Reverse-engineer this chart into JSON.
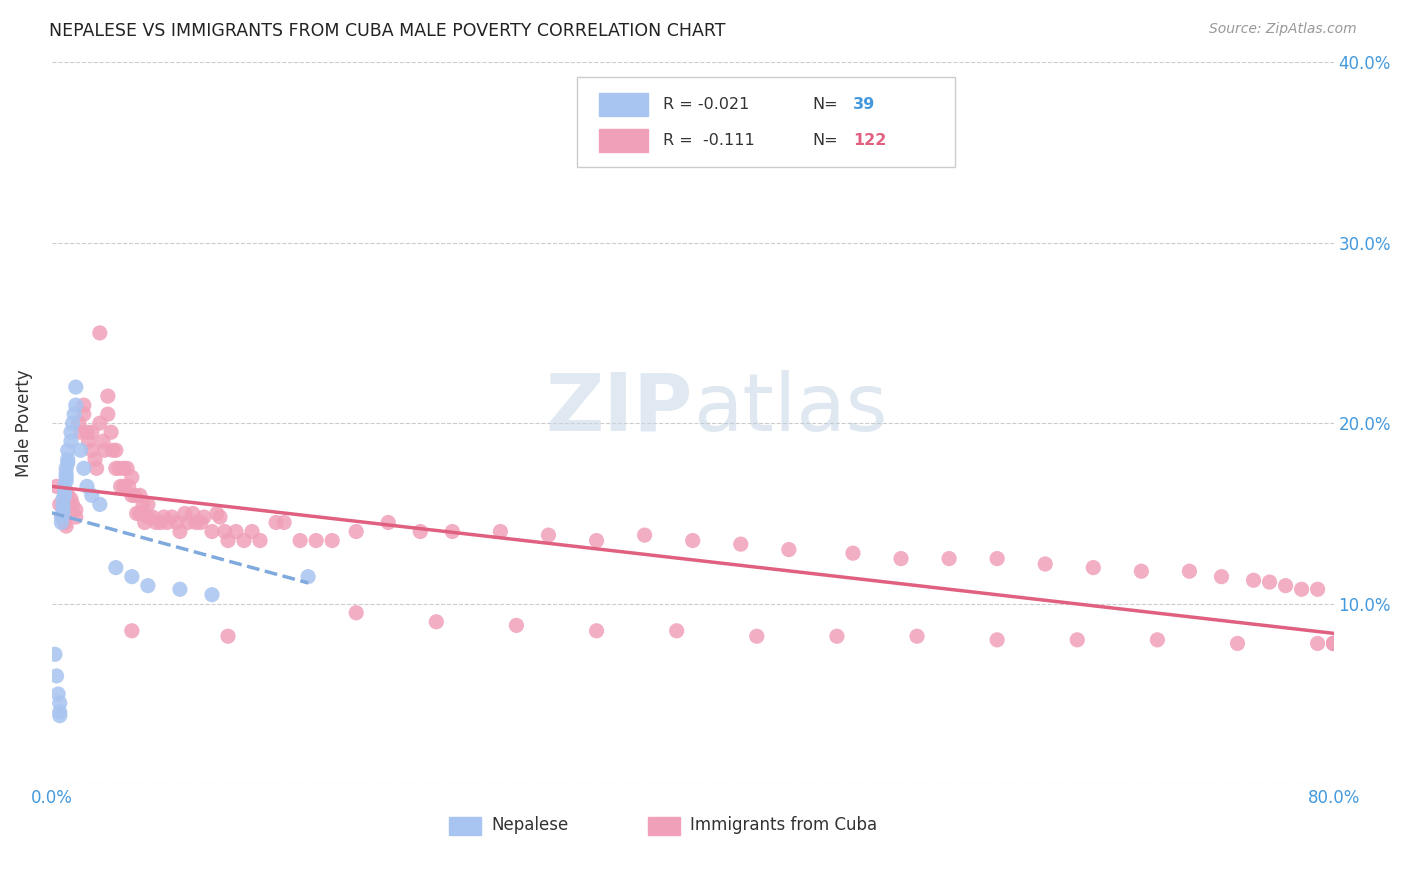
{
  "title": "NEPALESE VS IMMIGRANTS FROM CUBA MALE POVERTY CORRELATION CHART",
  "source": "Source: ZipAtlas.com",
  "ylabel": "Male Poverty",
  "x_min": 0.0,
  "x_max": 0.8,
  "y_min": 0.0,
  "y_max": 0.4,
  "color_nepalese": "#a8c4f0",
  "color_cuba": "#f0a0b8",
  "color_nepalese_line": "#80aadd",
  "color_cuba_line": "#e06080",
  "watermark_color": "#ddeeff",
  "nepalese_x": [
    0.002,
    0.003,
    0.004,
    0.005,
    0.005,
    0.005,
    0.006,
    0.006,
    0.007,
    0.007,
    0.007,
    0.007,
    0.008,
    0.008,
    0.008,
    0.009,
    0.009,
    0.009,
    0.009,
    0.01,
    0.01,
    0.01,
    0.012,
    0.012,
    0.013,
    0.014,
    0.015,
    0.015,
    0.018,
    0.02,
    0.022,
    0.025,
    0.03,
    0.04,
    0.05,
    0.06,
    0.08,
    0.1,
    0.16
  ],
  "nepalese_y": [
    0.072,
    0.06,
    0.05,
    0.045,
    0.04,
    0.038,
    0.145,
    0.148,
    0.15,
    0.152,
    0.155,
    0.158,
    0.16,
    0.162,
    0.165,
    0.168,
    0.17,
    0.172,
    0.175,
    0.178,
    0.18,
    0.185,
    0.19,
    0.195,
    0.2,
    0.205,
    0.21,
    0.22,
    0.185,
    0.175,
    0.165,
    0.16,
    0.155,
    0.12,
    0.115,
    0.11,
    0.108,
    0.105,
    0.115
  ],
  "cuba_x": [
    0.003,
    0.005,
    0.007,
    0.008,
    0.009,
    0.01,
    0.01,
    0.012,
    0.013,
    0.015,
    0.015,
    0.017,
    0.018,
    0.02,
    0.02,
    0.022,
    0.023,
    0.025,
    0.025,
    0.027,
    0.028,
    0.03,
    0.03,
    0.032,
    0.033,
    0.035,
    0.035,
    0.037,
    0.038,
    0.04,
    0.04,
    0.042,
    0.043,
    0.045,
    0.045,
    0.047,
    0.048,
    0.05,
    0.05,
    0.052,
    0.053,
    0.055,
    0.055,
    0.057,
    0.058,
    0.06,
    0.06,
    0.063,
    0.065,
    0.068,
    0.07,
    0.072,
    0.075,
    0.078,
    0.08,
    0.083,
    0.085,
    0.088,
    0.09,
    0.093,
    0.095,
    0.1,
    0.103,
    0.105,
    0.108,
    0.11,
    0.115,
    0.12,
    0.125,
    0.13,
    0.14,
    0.145,
    0.155,
    0.165,
    0.175,
    0.19,
    0.21,
    0.23,
    0.25,
    0.28,
    0.31,
    0.34,
    0.37,
    0.4,
    0.43,
    0.46,
    0.5,
    0.53,
    0.56,
    0.59,
    0.62,
    0.65,
    0.68,
    0.71,
    0.73,
    0.75,
    0.76,
    0.77,
    0.78,
    0.79,
    0.05,
    0.11,
    0.19,
    0.24,
    0.29,
    0.34,
    0.39,
    0.44,
    0.49,
    0.54,
    0.59,
    0.64,
    0.69,
    0.74,
    0.79,
    0.8,
    0.8,
    0.8,
    0.8,
    0.8,
    0.8,
    0.8
  ],
  "cuba_y": [
    0.165,
    0.155,
    0.148,
    0.145,
    0.143,
    0.155,
    0.16,
    0.158,
    0.155,
    0.152,
    0.148,
    0.2,
    0.195,
    0.205,
    0.21,
    0.195,
    0.19,
    0.185,
    0.195,
    0.18,
    0.175,
    0.25,
    0.2,
    0.19,
    0.185,
    0.215,
    0.205,
    0.195,
    0.185,
    0.175,
    0.185,
    0.175,
    0.165,
    0.175,
    0.165,
    0.175,
    0.165,
    0.16,
    0.17,
    0.16,
    0.15,
    0.16,
    0.15,
    0.155,
    0.145,
    0.155,
    0.148,
    0.148,
    0.145,
    0.145,
    0.148,
    0.145,
    0.148,
    0.145,
    0.14,
    0.15,
    0.145,
    0.15,
    0.145,
    0.145,
    0.148,
    0.14,
    0.15,
    0.148,
    0.14,
    0.135,
    0.14,
    0.135,
    0.14,
    0.135,
    0.145,
    0.145,
    0.135,
    0.135,
    0.135,
    0.14,
    0.145,
    0.14,
    0.14,
    0.14,
    0.138,
    0.135,
    0.138,
    0.135,
    0.133,
    0.13,
    0.128,
    0.125,
    0.125,
    0.125,
    0.122,
    0.12,
    0.118,
    0.118,
    0.115,
    0.113,
    0.112,
    0.11,
    0.108,
    0.108,
    0.085,
    0.082,
    0.095,
    0.09,
    0.088,
    0.085,
    0.085,
    0.082,
    0.082,
    0.082,
    0.08,
    0.08,
    0.08,
    0.078,
    0.078,
    0.078,
    0.078,
    0.078,
    0.078,
    0.078,
    0.078,
    0.078
  ]
}
